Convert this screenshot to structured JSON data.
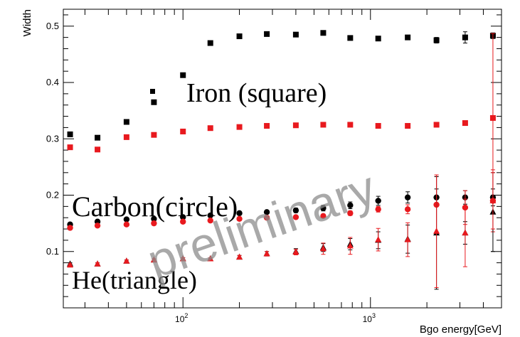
{
  "chart_data": {
    "type": "scatter",
    "title": "",
    "xlabel": "Bgo energy[GeV]",
    "ylabel": "Width",
    "xscale": "log",
    "xlim": [
      23,
      5000
    ],
    "ylim": [
      0.0,
      0.53
    ],
    "x_tick_labels": [
      {
        "base": "10",
        "exp": "2"
      },
      {
        "base": "10",
        "exp": "3"
      }
    ],
    "y_ticks": [
      "0.1",
      "0.2",
      "0.3",
      "0.4",
      "0.5"
    ],
    "grid": false,
    "annotations": [
      "Iron (square)",
      "Carbon(circle)",
      "He(triangle)"
    ],
    "watermark": "preliminary",
    "colors": {
      "black_series": "#000000",
      "red_series": "#e8191e",
      "watermark": "#8c8c8c"
    },
    "series": [
      {
        "marker": "square",
        "color": "#000000",
        "x": [
          25,
          35,
          50,
          70,
          100,
          140,
          200,
          280,
          400,
          560,
          780,
          1100,
          1580,
          2250,
          3200,
          4500
        ],
        "y": [
          0.308,
          0.302,
          0.33,
          0.365,
          0.413,
          0.47,
          0.482,
          0.486,
          0.485,
          0.488,
          0.479,
          0.478,
          0.48,
          0.475,
          0.48,
          0.483
        ],
        "err": [
          0.003,
          0.003,
          0.003,
          0.003,
          0.003,
          0.003,
          0.003,
          0.003,
          0.003,
          0.003,
          0.003,
          0.003,
          0.003,
          0.005,
          0.01,
          0.005
        ]
      },
      {
        "marker": "square",
        "color": "#e8191e",
        "x": [
          25,
          35,
          50,
          70,
          100,
          140,
          200,
          280,
          400,
          560,
          780,
          1100,
          1580,
          2250,
          3200,
          4500
        ],
        "y": [
          0.285,
          0.281,
          0.303,
          0.307,
          0.313,
          0.319,
          0.321,
          0.323,
          0.324,
          0.325,
          0.325,
          0.323,
          0.323,
          0.325,
          0.328,
          0.337
        ],
        "err": [
          0.002,
          0.002,
          0.002,
          0.002,
          0.002,
          0.002,
          0.002,
          0.002,
          0.002,
          0.002,
          0.002,
          0.002,
          0.002,
          0.003,
          0.004,
          0.15
        ]
      },
      {
        "marker": "circle",
        "color": "#000000",
        "x": [
          25,
          35,
          50,
          70,
          100,
          140,
          200,
          280,
          400,
          560,
          780,
          1100,
          1580,
          2250,
          3200,
          4500
        ],
        "y": [
          0.148,
          0.153,
          0.157,
          0.158,
          0.161,
          0.164,
          0.168,
          0.17,
          0.173,
          0.177,
          0.182,
          0.19,
          0.196,
          0.196,
          0.196,
          0.196
        ],
        "err": [
          0.002,
          0.002,
          0.002,
          0.002,
          0.002,
          0.002,
          0.002,
          0.003,
          0.004,
          0.005,
          0.006,
          0.008,
          0.01,
          0.015,
          0.012,
          0.015
        ]
      },
      {
        "marker": "circle",
        "color": "#e8191e",
        "x": [
          25,
          35,
          50,
          70,
          100,
          140,
          200,
          280,
          400,
          560,
          780,
          1100,
          1580,
          2250,
          3200,
          4500
        ],
        "y": [
          0.142,
          0.146,
          0.148,
          0.15,
          0.153,
          0.155,
          0.158,
          0.16,
          0.161,
          0.163,
          0.168,
          0.175,
          0.175,
          0.183,
          0.178,
          0.19
        ],
        "err": [
          0.002,
          0.002,
          0.002,
          0.002,
          0.002,
          0.002,
          0.002,
          0.002,
          0.003,
          0.003,
          0.004,
          0.005,
          0.008,
          0.05,
          0.03,
          0.055
        ]
      },
      {
        "marker": "triangle",
        "color": "#000000",
        "x": [
          25,
          35,
          50,
          70,
          100,
          140,
          200,
          280,
          400,
          560,
          780,
          1100,
          1580,
          2250,
          3200,
          4500
        ],
        "y": [
          0.078,
          0.078,
          0.083,
          0.085,
          0.087,
          0.087,
          0.09,
          0.096,
          0.1,
          0.107,
          0.113,
          0.12,
          0.122,
          0.133,
          0.133,
          0.17
        ],
        "err": [
          0.002,
          0.002,
          0.002,
          0.002,
          0.002,
          0.002,
          0.003,
          0.004,
          0.005,
          0.007,
          0.01,
          0.015,
          0.025,
          0.1,
          0.02,
          0.07
        ]
      },
      {
        "marker": "triangle",
        "color": "#e8191e",
        "x": [
          25,
          35,
          50,
          70,
          100,
          140,
          200,
          280,
          400,
          560,
          780,
          1100,
          1580,
          2250,
          3200,
          4500
        ],
        "y": [
          0.076,
          0.078,
          0.083,
          0.085,
          0.087,
          0.087,
          0.09,
          0.096,
          0.099,
          0.105,
          0.11,
          0.121,
          0.121,
          0.136,
          0.133,
          0.19
        ],
        "err": [
          0.002,
          0.002,
          0.002,
          0.002,
          0.002,
          0.002,
          0.003,
          0.004,
          0.005,
          0.01,
          0.015,
          0.02,
          0.03,
          0.1,
          0.06,
          0.05
        ]
      }
    ]
  }
}
